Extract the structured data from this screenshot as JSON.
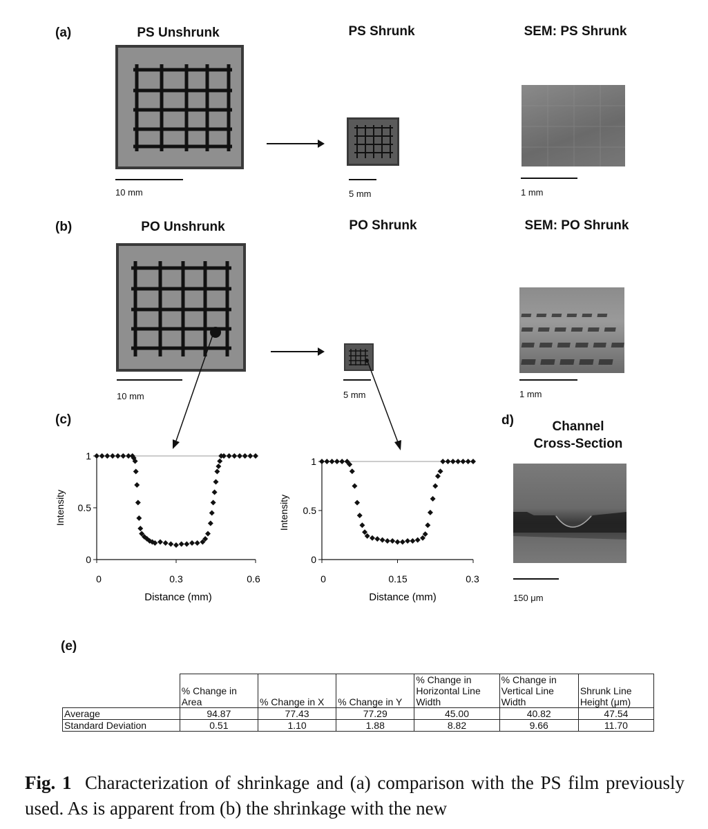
{
  "panel_a": {
    "label": "(a)",
    "titles": [
      "PS Unshrunk",
      "PS Shrunk",
      "SEM: PS Shrunk"
    ],
    "scale_bars": [
      "10 mm",
      "5 mm",
      "1 mm"
    ]
  },
  "panel_b": {
    "label": "(b)",
    "titles": [
      "PO Unshrunk",
      "PO Shrunk",
      "SEM: PO Shrunk"
    ],
    "scale_bars": [
      "10 mm",
      "5 mm",
      "1 mm"
    ]
  },
  "panel_c": {
    "label": "(c)"
  },
  "panel_d": {
    "label": "d)",
    "title_line1": "Channel",
    "title_line2": "Cross-Section",
    "scale_bar": "150 μm"
  },
  "panel_e": {
    "label": "(e)"
  },
  "chart_data": [
    {
      "type": "scatter",
      "xlabel": "Distance (mm)",
      "ylabel": "Intensity",
      "xlim": [
        0,
        0.6
      ],
      "ylim": [
        0,
        1
      ],
      "xticks": [
        "0",
        "0.3",
        "0.6"
      ],
      "yticks": [
        "0",
        "0.5",
        "1"
      ],
      "x": [
        0,
        0.02,
        0.04,
        0.06,
        0.08,
        0.1,
        0.12,
        0.135,
        0.14,
        0.145,
        0.148,
        0.152,
        0.156,
        0.16,
        0.165,
        0.17,
        0.18,
        0.19,
        0.2,
        0.21,
        0.22,
        0.24,
        0.26,
        0.28,
        0.3,
        0.32,
        0.34,
        0.36,
        0.38,
        0.4,
        0.41,
        0.42,
        0.43,
        0.435,
        0.44,
        0.445,
        0.45,
        0.455,
        0.46,
        0.465,
        0.47,
        0.48,
        0.5,
        0.52,
        0.54,
        0.56,
        0.58,
        0.6
      ],
      "y": [
        1,
        1,
        1,
        1,
        1,
        1,
        1,
        1,
        0.98,
        0.95,
        0.85,
        0.72,
        0.55,
        0.4,
        0.3,
        0.25,
        0.22,
        0.2,
        0.18,
        0.17,
        0.16,
        0.17,
        0.16,
        0.15,
        0.14,
        0.15,
        0.15,
        0.16,
        0.16,
        0.17,
        0.2,
        0.25,
        0.35,
        0.45,
        0.55,
        0.65,
        0.75,
        0.85,
        0.9,
        0.95,
        1,
        1,
        1,
        1,
        1,
        1,
        1,
        1
      ]
    },
    {
      "type": "scatter",
      "xlabel": "Distance (mm)",
      "ylabel": "Intensity",
      "xlim": [
        0,
        0.3
      ],
      "ylim": [
        0,
        1
      ],
      "xticks": [
        "0",
        "0.15",
        "0.3"
      ],
      "yticks": [
        "0",
        "0.5",
        "1"
      ],
      "x": [
        0,
        0.01,
        0.02,
        0.03,
        0.04,
        0.05,
        0.055,
        0.06,
        0.065,
        0.07,
        0.075,
        0.08,
        0.085,
        0.09,
        0.1,
        0.11,
        0.12,
        0.13,
        0.14,
        0.15,
        0.16,
        0.17,
        0.18,
        0.19,
        0.2,
        0.205,
        0.21,
        0.215,
        0.22,
        0.225,
        0.23,
        0.235,
        0.24,
        0.25,
        0.26,
        0.27,
        0.28,
        0.29,
        0.3
      ],
      "y": [
        1,
        1,
        1,
        1,
        1,
        1,
        0.97,
        0.9,
        0.75,
        0.58,
        0.45,
        0.35,
        0.28,
        0.24,
        0.22,
        0.21,
        0.2,
        0.19,
        0.19,
        0.18,
        0.18,
        0.19,
        0.19,
        0.2,
        0.22,
        0.26,
        0.35,
        0.48,
        0.62,
        0.75,
        0.85,
        0.9,
        1,
        1,
        1,
        1,
        1,
        1,
        1
      ]
    }
  ],
  "table": {
    "headers": [
      "",
      "% Change in Area",
      "% Change in X",
      "% Change in Y",
      "% Change in Horizontal Line Width",
      "% Change in Vertical Line Width",
      "Shrunk Line Height (μm)"
    ],
    "rows": [
      [
        "Average",
        "94.87",
        "77.43",
        "77.29",
        "45.00",
        "40.82",
        "47.54"
      ],
      [
        "Standard Deviation",
        "0.51",
        "1.10",
        "1.88",
        "8.82",
        "9.66",
        "11.70"
      ]
    ]
  },
  "caption": {
    "fig_label": "Fig. 1",
    "text": "Characterization of shrinkage and (a) comparison with the PS film previously used. As is apparent from (b) the shrinkage with the new"
  }
}
